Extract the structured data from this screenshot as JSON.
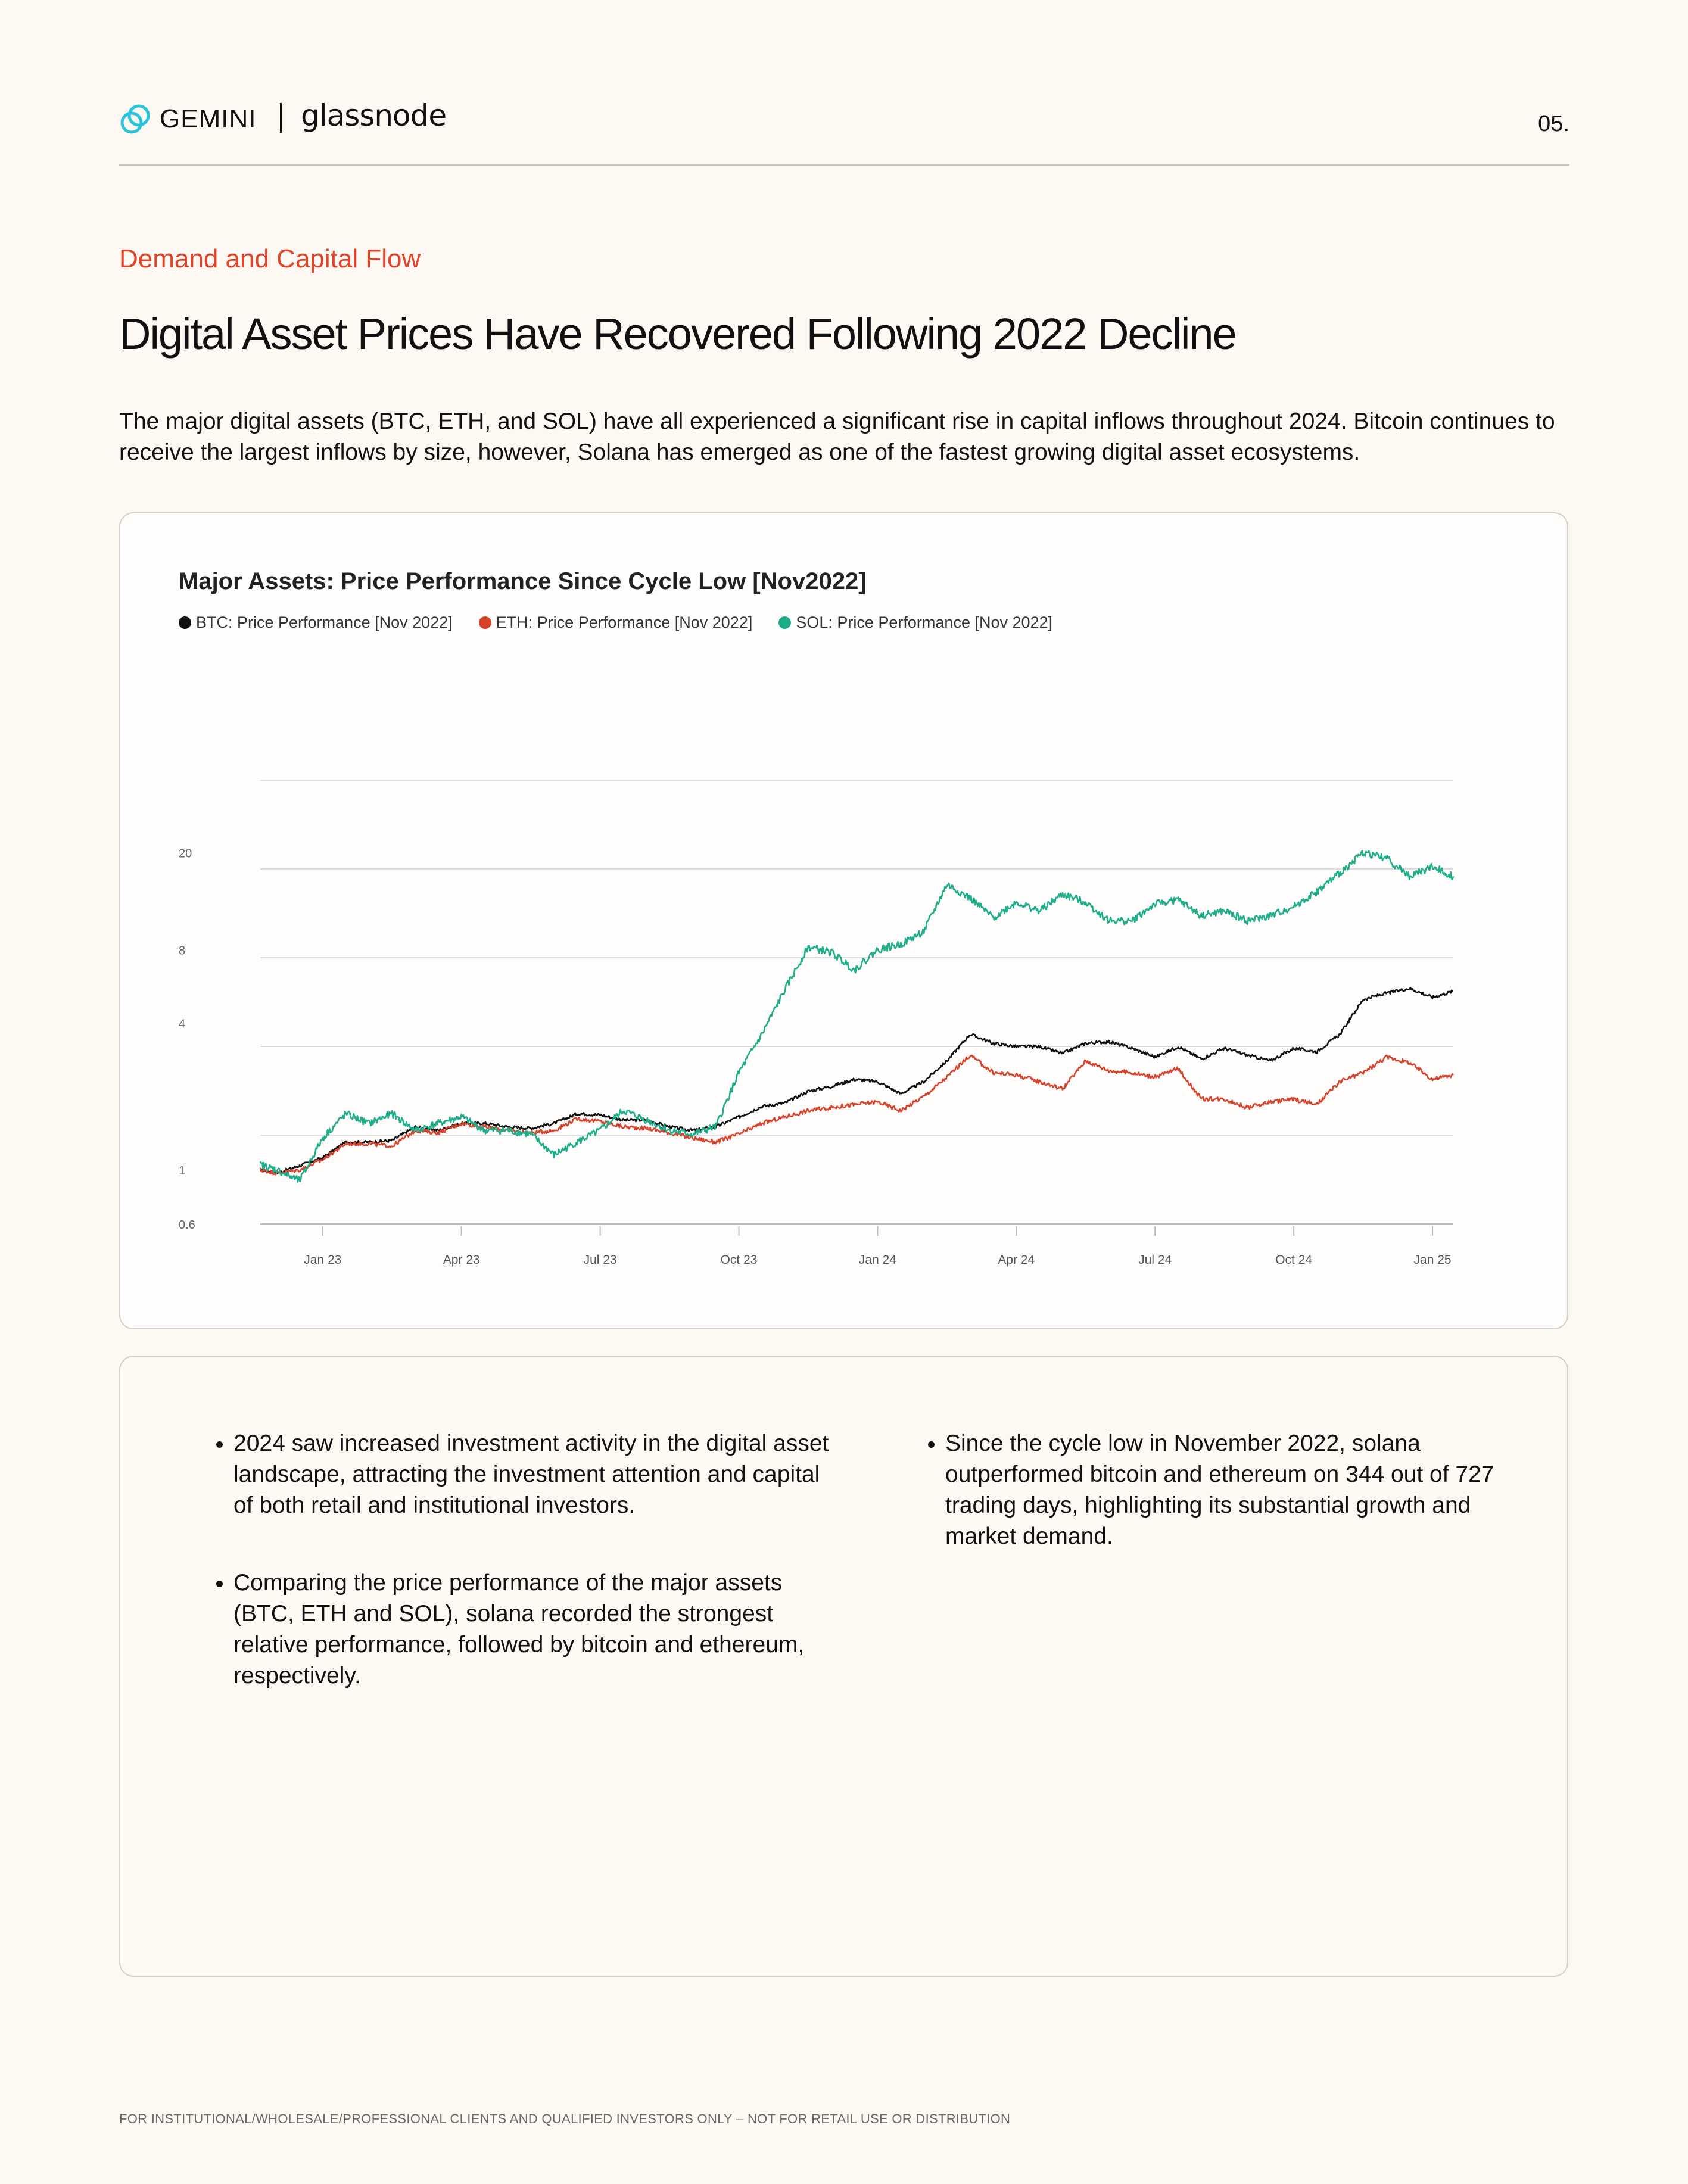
{
  "header": {
    "brand_primary": "GEMINI",
    "brand_secondary": "glassnode",
    "page_number": "05."
  },
  "section_label": "Demand and Capital Flow",
  "title": "Digital Asset Prices Have Recovered Following 2022 Decline",
  "intro": "The major digital assets (BTC, ETH, and SOL) have all experienced a significant rise in capital inflows throughout 2024. Bitcoin continues to receive the largest inflows by size, however, Solana has emerged as one of the fastest growing digital asset ecosystems.",
  "colors": {
    "accent": "#e0442a",
    "btc": "#111111",
    "eth": "#d8432c",
    "sol": "#1fae8a",
    "gemini_icon": "#29c3dc"
  },
  "chart_data": {
    "type": "line",
    "title": "Major Assets: Price Performance Since Cycle Low [Nov2022]",
    "xlabel": "",
    "ylabel": "",
    "y_scale": "log",
    "ylim": [
      0.6,
      90
    ],
    "y_ticks": [
      "20",
      "8",
      "4",
      "1",
      "0.6"
    ],
    "y_tick_values": [
      20,
      8,
      4,
      1,
      0.6
    ],
    "x_ticks": [
      "Jan 23",
      "Apr 23",
      "Jul 23",
      "Oct 23",
      "Jan 24",
      "Apr 24",
      "Jul 24",
      "Oct 24",
      "Jan 25"
    ],
    "x_tick_values": [
      1.5,
      4.5,
      7.5,
      10.5,
      13.5,
      16.5,
      19.5,
      22.5,
      25.5
    ],
    "x_range": [
      0.15,
      25.95
    ],
    "x_unit": "months since Nov 2022",
    "series": [
      {
        "name": "BTC: Price Performance [Nov 2022]",
        "color": "#111111",
        "x": [
          0.15,
          0.5,
          1,
          1.5,
          2,
          2.5,
          3,
          3.5,
          4,
          4.5,
          5,
          5.5,
          6,
          6.5,
          7,
          7.5,
          8,
          8.5,
          9,
          9.5,
          10,
          10.5,
          11,
          11.5,
          12,
          12.5,
          13,
          13.5,
          14,
          14.5,
          15,
          15.5,
          16,
          16.5,
          17,
          17.5,
          18,
          18.5,
          19,
          19.5,
          20,
          20.5,
          21,
          21.5,
          22,
          22.5,
          23,
          23.5,
          24,
          24.5,
          25,
          25.5,
          25.95
        ],
        "values": [
          1.0,
          0.97,
          1.04,
          1.12,
          1.3,
          1.3,
          1.32,
          1.5,
          1.45,
          1.55,
          1.55,
          1.5,
          1.48,
          1.55,
          1.7,
          1.68,
          1.6,
          1.6,
          1.5,
          1.45,
          1.5,
          1.65,
          1.82,
          1.88,
          2.1,
          2.2,
          2.35,
          2.3,
          2.05,
          2.3,
          2.8,
          3.6,
          3.3,
          3.2,
          3.2,
          3.0,
          3.3,
          3.35,
          3.15,
          2.9,
          3.2,
          2.85,
          3.15,
          2.95,
          2.8,
          3.15,
          3.05,
          3.6,
          5.0,
          5.3,
          5.55,
          5.1,
          5.4
        ]
      },
      {
        "name": "ETH: Price Performance [Nov 2022]",
        "color": "#d8432c",
        "x": [
          0.15,
          0.5,
          1,
          1.5,
          2,
          2.5,
          3,
          3.5,
          4,
          4.5,
          5,
          5.5,
          6,
          6.5,
          7,
          7.5,
          8,
          8.5,
          9,
          9.5,
          10,
          10.5,
          11,
          11.5,
          12,
          12.5,
          13,
          13.5,
          14,
          14.5,
          15,
          15.5,
          16,
          16.5,
          17,
          17.5,
          18,
          18.5,
          19,
          19.5,
          20,
          20.5,
          21,
          21.5,
          22,
          22.5,
          23,
          23.5,
          24,
          24.5,
          25,
          25.5,
          25.95
        ],
        "values": [
          1.0,
          0.97,
          1.0,
          1.1,
          1.28,
          1.28,
          1.25,
          1.45,
          1.42,
          1.55,
          1.5,
          1.45,
          1.42,
          1.45,
          1.62,
          1.58,
          1.5,
          1.48,
          1.42,
          1.35,
          1.3,
          1.4,
          1.55,
          1.65,
          1.75,
          1.8,
          1.85,
          1.9,
          1.75,
          2.0,
          2.4,
          2.95,
          2.5,
          2.45,
          2.3,
          2.15,
          2.8,
          2.55,
          2.5,
          2.4,
          2.6,
          1.95,
          1.95,
          1.8,
          1.9,
          1.95,
          1.85,
          2.3,
          2.5,
          2.9,
          2.75,
          2.35,
          2.45
        ]
      },
      {
        "name": "SOL: Price Performance [Nov 2022]",
        "color": "#1fae8a",
        "x": [
          0.15,
          0.5,
          1,
          1.5,
          2,
          2.5,
          3,
          3.5,
          4,
          4.5,
          5,
          5.5,
          6,
          6.5,
          7,
          7.5,
          8,
          8.5,
          9,
          9.5,
          10,
          10.5,
          11,
          11.5,
          12,
          12.5,
          13,
          13.5,
          14,
          14.5,
          15,
          15.5,
          16,
          16.5,
          17,
          17.5,
          18,
          18.5,
          19,
          19.5,
          20,
          20.5,
          21,
          21.5,
          22,
          22.5,
          23,
          23.5,
          24,
          24.5,
          25,
          25.5,
          25.95
        ],
        "values": [
          1.05,
          1.0,
          0.9,
          1.35,
          1.7,
          1.55,
          1.7,
          1.45,
          1.55,
          1.65,
          1.45,
          1.45,
          1.4,
          1.15,
          1.3,
          1.45,
          1.75,
          1.6,
          1.45,
          1.4,
          1.5,
          2.5,
          3.6,
          5.5,
          8.2,
          7.8,
          6.6,
          8.0,
          8.4,
          9.5,
          14.8,
          13.0,
          10.8,
          12.5,
          11.5,
          13.5,
          12.5,
          10.5,
          10.5,
          12.3,
          12.8,
          11.0,
          11.5,
          10.5,
          11.0,
          12.0,
          13.8,
          16.5,
          20.0,
          19.0,
          16.0,
          17.5,
          16.0
        ]
      }
    ]
  },
  "notes": {
    "left": [
      "2024 saw increased investment activity in the digital asset landscape, attracting the investment attention and capital of both retail and institutional investors.",
      "Comparing the price performance of the major assets (BTC, ETH and SOL), solana recorded the strongest relative performance, followed by bitcoin and ethereum, respectively."
    ],
    "right": [
      "Since the cycle low in November 2022, solana outperformed bitcoin and ethereum on 344 out of 727 trading days, highlighting its substantial growth and market demand."
    ]
  },
  "footer": "FOR INSTITUTIONAL/WHOLESALE/PROFESSIONAL CLIENTS AND QUALIFIED INVESTORS ONLY – NOT FOR RETAIL USE OR DISTRIBUTION"
}
